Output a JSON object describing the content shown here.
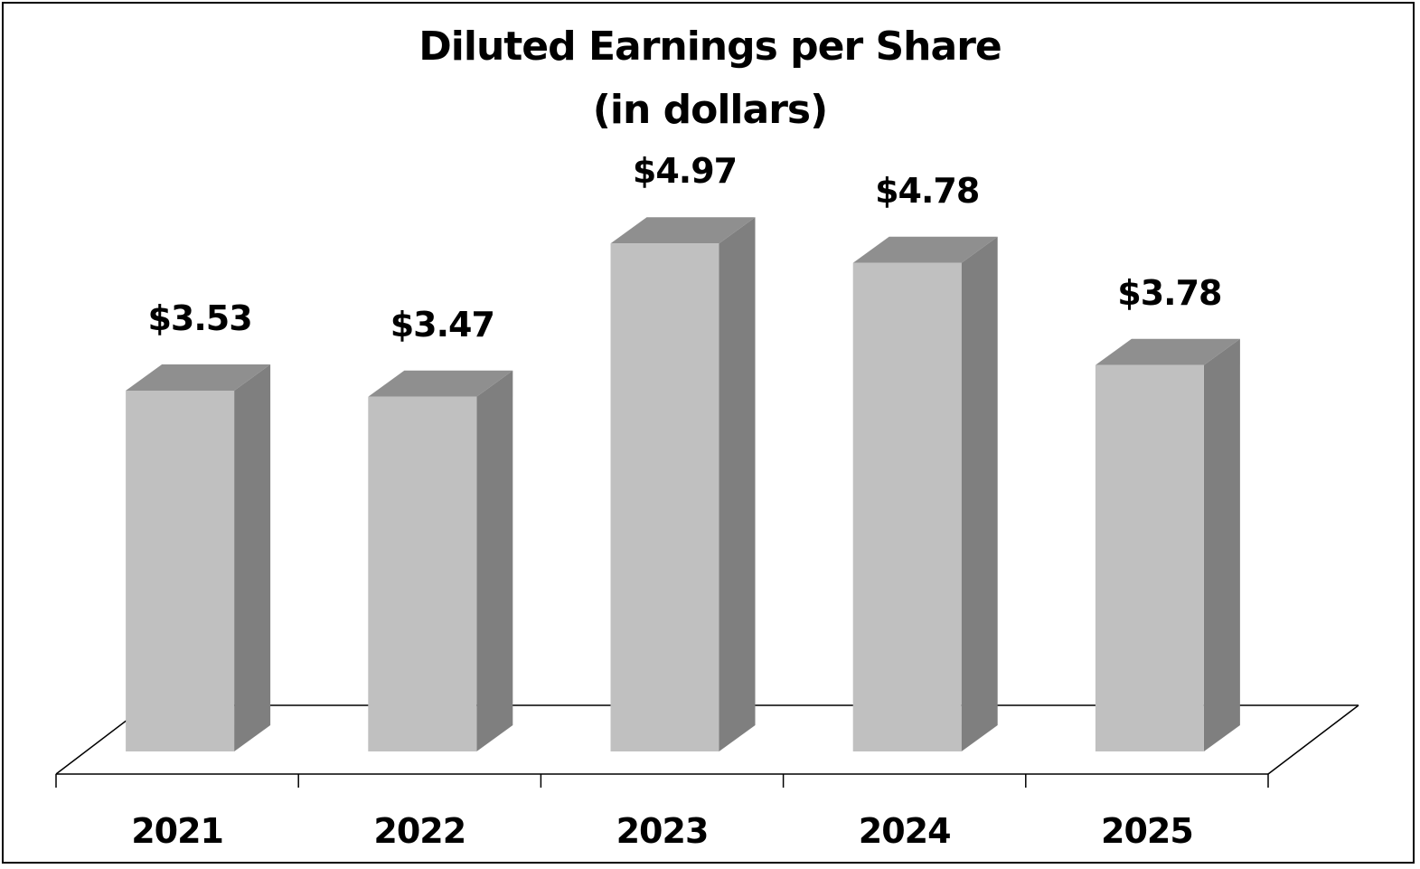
{
  "chart_data": {
    "type": "bar",
    "style": "3d-column",
    "title": "Diluted Earnings per Share",
    "subtitle": "(in dollars)",
    "xlabel": "",
    "ylabel": "",
    "categories": [
      "2021",
      "2022",
      "2023",
      "2024",
      "2025"
    ],
    "values": [
      3.53,
      3.47,
      4.97,
      4.78,
      3.78
    ],
    "data_labels": [
      "$3.53",
      "$3.47",
      "$4.97",
      "$4.78",
      "$3.78"
    ],
    "ylim": [
      0,
      5.5
    ],
    "grid": false,
    "legend": "none",
    "colors": {
      "bar_front": "#c0c0c0",
      "bar_top": "#8f8f8f",
      "bar_side": "#7f7f7f",
      "axis": "#000000",
      "border": "#000000"
    }
  }
}
